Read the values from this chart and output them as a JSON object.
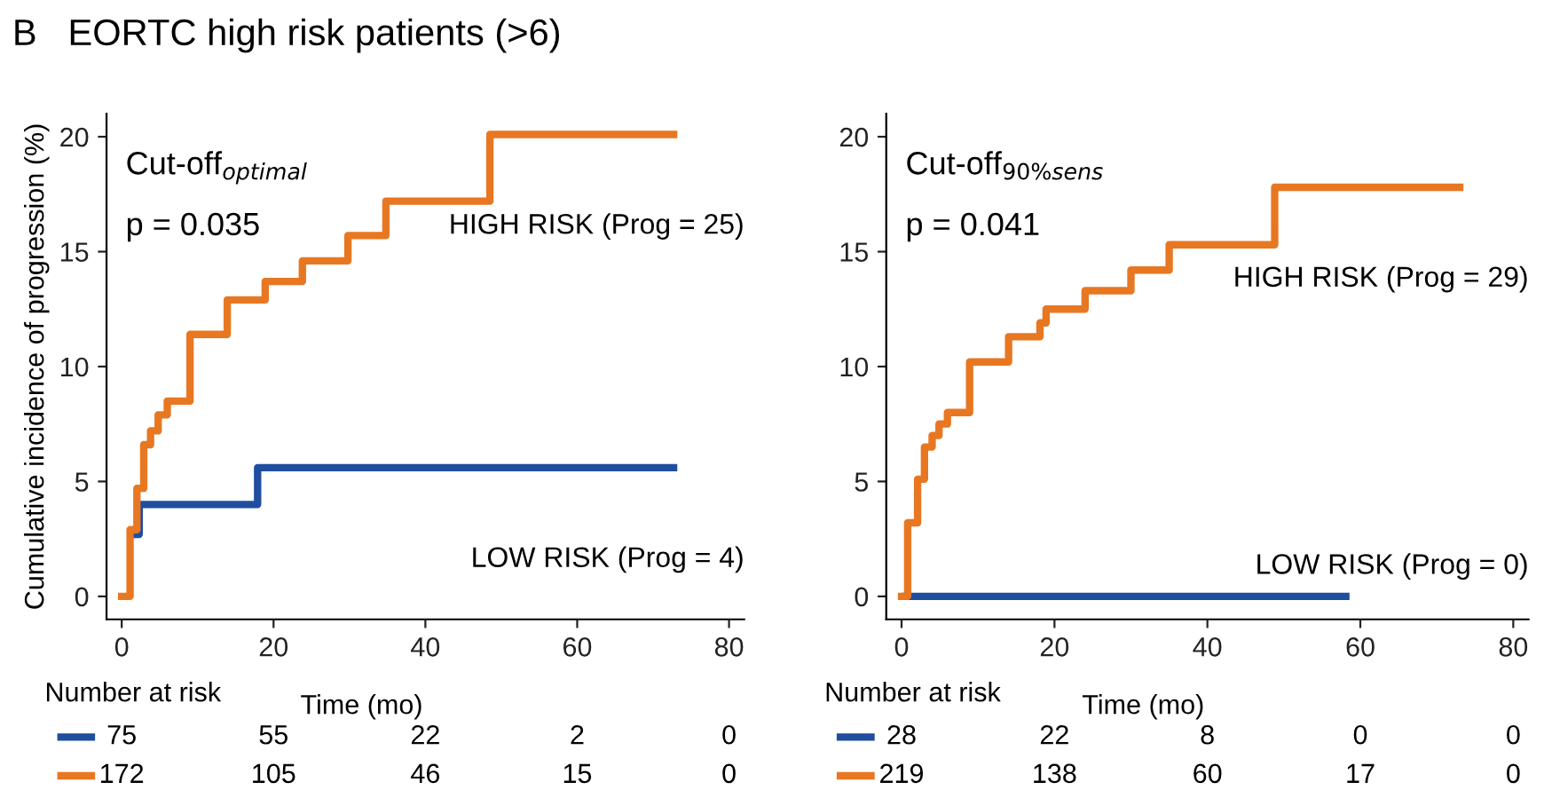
{
  "chart_data": [
    {
      "type": "step",
      "title": "B   EORTC high risk patients (>6)",
      "xlabel": "Time (mo)",
      "ylabel": "Cumulative incidence of progression (%)",
      "xlim": [
        -2,
        82
      ],
      "ylim": [
        -1,
        21
      ],
      "xticks": [
        0,
        20,
        40,
        60,
        80
      ],
      "yticks": [
        0,
        5,
        10,
        15,
        20
      ],
      "grid": false,
      "legend": false,
      "line_style": "solid",
      "marker": "none",
      "series": [
        {
          "name": "LOW RISK (Prog = 4)",
          "color": "#1f4e9e",
          "x": [
            1.2,
            2.3,
            17.9,
            72.7
          ],
          "values": [
            2.7,
            4.0,
            5.6,
            5.6
          ]
        },
        {
          "name": "HIGH RISK (Prog = 25)",
          "color": "#e87722",
          "x": [
            0,
            1.1,
            2.0,
            2.9,
            3.8,
            4.8,
            6.0,
            9.0,
            13.9,
            18.9,
            23.8,
            29.8,
            34.8,
            48.5,
            72.7
          ],
          "values": [
            0,
            2.9,
            4.7,
            6.6,
            7.2,
            7.9,
            8.5,
            11.4,
            12.9,
            13.7,
            14.6,
            15.7,
            17.2,
            20.1,
            20.1
          ]
        }
      ],
      "annotations": [
        "Cut-off$_{optimal}$",
        "p = 0.035",
        "Number at risk",
        "75",
        "55",
        "22",
        "2",
        "0",
        "172",
        "105",
        "46",
        "15",
        "0"
      ]
    },
    {
      "type": "step",
      "xlabel": "Time (mo)",
      "xlim": [
        -2,
        82
      ],
      "ylim": [
        -1,
        21
      ],
      "xticks": [
        0,
        20,
        40,
        60,
        80
      ],
      "yticks": [
        0,
        5,
        10,
        15,
        20
      ],
      "grid": false,
      "legend": false,
      "line_style": "solid",
      "marker": "none",
      "series": [
        {
          "name": "LOW RISK (Prog = 0)",
          "color": "#1f4e9e",
          "x": [
            0.5,
            58.1
          ],
          "values": [
            0,
            0
          ]
        },
        {
          "name": "HIGH RISK (Prog = 29)",
          "color": "#e87722",
          "x": [
            0,
            0.8,
            2.1,
            3.0,
            4.0,
            4.9,
            6.0,
            8.9,
            14.0,
            18.1,
            18.9,
            24.0,
            30.0,
            35.0,
            48.8,
            73.0
          ],
          "values": [
            0,
            3.2,
            5.1,
            6.5,
            7.0,
            7.5,
            8.0,
            10.2,
            11.3,
            11.9,
            12.5,
            13.3,
            14.2,
            15.3,
            17.8,
            17.8
          ]
        }
      ],
      "annotations": [
        "Cut-off$_{90%sens}$",
        "p = 0.041",
        "Number at risk",
        "28",
        "22",
        "8",
        "0",
        "0",
        "219",
        "138",
        "60",
        "17",
        "0"
      ]
    }
  ]
}
